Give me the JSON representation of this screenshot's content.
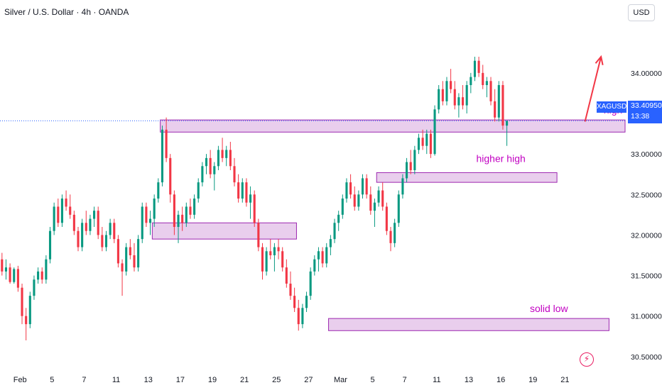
{
  "header": {
    "title": "Silver / U.S. Dollar · 4h · OANDA",
    "currency": "USD"
  },
  "colors": {
    "up": "#089981",
    "down": "#f23645",
    "zone_fill": "#e1bee7",
    "zone_stroke": "#9c27b0",
    "annotation": "#c200c2",
    "price_label": "#2962ff",
    "arrow": "#f23645",
    "axis_text": "#131722"
  },
  "icons": {
    "bolt": "lightning-icon"
  },
  "price_tag": {
    "symbol": "XAGUSD",
    "price": "33.40950",
    "countdown": "13:38",
    "value": 33.4095
  },
  "chart_data": {
    "type": "candlestick",
    "title": "Silver / U.S. Dollar · 4h · OANDA",
    "xlabel": "",
    "ylabel": "",
    "ylim": [
      30.35,
      34.55
    ],
    "y_ticks": [
      {
        "value": 34.0,
        "label": "34.00000"
      },
      {
        "value": 33.5,
        "label": "33.50000"
      },
      {
        "value": 33.0,
        "label": "33.00000"
      },
      {
        "value": 32.5,
        "label": "32.50000"
      },
      {
        "value": 32.0,
        "label": "32.00000"
      },
      {
        "value": 31.5,
        "label": "31.50000"
      },
      {
        "value": 31.0,
        "label": "31.00000"
      },
      {
        "value": 30.5,
        "label": "30.50000"
      }
    ],
    "x_range": [
      0,
      156
    ],
    "x_ticks": [
      {
        "index": 5,
        "label": "Feb"
      },
      {
        "index": 13,
        "label": "5"
      },
      {
        "index": 21,
        "label": "7"
      },
      {
        "index": 29,
        "label": "11"
      },
      {
        "index": 37,
        "label": "13"
      },
      {
        "index": 45,
        "label": "17"
      },
      {
        "index": 53,
        "label": "19"
      },
      {
        "index": 61,
        "label": "21"
      },
      {
        "index": 69,
        "label": "25"
      },
      {
        "index": 77,
        "label": "27"
      },
      {
        "index": 85,
        "label": "Mar"
      },
      {
        "index": 93,
        "label": "5"
      },
      {
        "index": 101,
        "label": "7"
      },
      {
        "index": 109,
        "label": "11"
      },
      {
        "index": 117,
        "label": "13"
      },
      {
        "index": 125,
        "label": "16"
      },
      {
        "index": 133,
        "label": "19"
      },
      {
        "index": 141,
        "label": "21"
      }
    ],
    "series_ohlc": [
      [
        31.7,
        31.78,
        31.5,
        31.55
      ],
      [
        31.55,
        31.7,
        31.45,
        31.6
      ],
      [
        31.6,
        31.65,
        31.4,
        31.42
      ],
      [
        31.42,
        31.6,
        31.4,
        31.58
      ],
      [
        31.58,
        31.62,
        31.3,
        31.35
      ],
      [
        31.35,
        31.4,
        30.9,
        31.0
      ],
      [
        31.0,
        31.1,
        30.7,
        30.9
      ],
      [
        30.9,
        31.3,
        30.85,
        31.25
      ],
      [
        31.25,
        31.5,
        31.2,
        31.45
      ],
      [
        31.45,
        31.6,
        31.4,
        31.55
      ],
      [
        31.55,
        31.6,
        31.4,
        31.45
      ],
      [
        31.45,
        31.75,
        31.4,
        31.7
      ],
      [
        31.7,
        32.1,
        31.65,
        32.05
      ],
      [
        32.05,
        32.4,
        32.0,
        32.35
      ],
      [
        32.35,
        32.45,
        32.1,
        32.15
      ],
      [
        32.15,
        32.5,
        32.1,
        32.45
      ],
      [
        32.45,
        32.55,
        32.3,
        32.35
      ],
      [
        32.35,
        32.5,
        32.2,
        32.25
      ],
      [
        32.25,
        32.3,
        32.0,
        32.05
      ],
      [
        32.05,
        32.1,
        31.8,
        31.85
      ],
      [
        31.85,
        32.2,
        31.8,
        32.15
      ],
      [
        32.15,
        32.3,
        32.0,
        32.05
      ],
      [
        32.05,
        32.25,
        32.0,
        32.2
      ],
      [
        32.2,
        32.35,
        32.1,
        32.3
      ],
      [
        32.3,
        32.35,
        31.95,
        32.0
      ],
      [
        32.0,
        32.1,
        31.8,
        31.85
      ],
      [
        31.85,
        32.05,
        31.8,
        32.0
      ],
      [
        32.0,
        32.2,
        31.95,
        32.15
      ],
      [
        32.15,
        32.2,
        31.9,
        31.95
      ],
      [
        31.95,
        32.0,
        31.6,
        31.65
      ],
      [
        31.65,
        31.7,
        31.25,
        31.55
      ],
      [
        31.55,
        31.9,
        31.5,
        31.85
      ],
      [
        31.85,
        31.95,
        31.7,
        31.75
      ],
      [
        31.75,
        31.9,
        31.55,
        31.6
      ],
      [
        31.6,
        32.0,
        31.55,
        31.95
      ],
      [
        31.95,
        32.4,
        31.9,
        32.35
      ],
      [
        32.35,
        32.4,
        32.1,
        32.15
      ],
      [
        32.15,
        32.3,
        32.0,
        32.2
      ],
      [
        32.2,
        32.5,
        32.1,
        32.45
      ],
      [
        32.45,
        32.7,
        32.4,
        32.65
      ],
      [
        32.65,
        33.35,
        32.6,
        33.3
      ],
      [
        33.3,
        33.45,
        32.9,
        32.95
      ],
      [
        32.95,
        33.0,
        32.4,
        32.5
      ],
      [
        32.5,
        32.55,
        32.0,
        32.1
      ],
      [
        32.1,
        32.3,
        31.9,
        32.25
      ],
      [
        32.25,
        32.35,
        32.05,
        32.15
      ],
      [
        32.15,
        32.4,
        32.1,
        32.35
      ],
      [
        32.35,
        32.45,
        32.2,
        32.25
      ],
      [
        32.25,
        32.5,
        32.2,
        32.45
      ],
      [
        32.45,
        32.7,
        32.4,
        32.65
      ],
      [
        32.65,
        32.9,
        32.6,
        32.85
      ],
      [
        32.85,
        33.0,
        32.75,
        32.95
      ],
      [
        32.95,
        33.05,
        32.7,
        32.75
      ],
      [
        32.75,
        32.9,
        32.55,
        32.85
      ],
      [
        32.85,
        33.1,
        32.8,
        33.05
      ],
      [
        33.05,
        33.2,
        32.9,
        32.95
      ],
      [
        32.95,
        33.1,
        32.85,
        33.05
      ],
      [
        33.05,
        33.15,
        32.8,
        32.85
      ],
      [
        32.85,
        32.95,
        32.6,
        32.65
      ],
      [
        32.65,
        32.75,
        32.4,
        32.45
      ],
      [
        32.45,
        32.7,
        32.4,
        32.65
      ],
      [
        32.65,
        32.7,
        32.35,
        32.4
      ],
      [
        32.4,
        32.6,
        32.2,
        32.5
      ],
      [
        32.5,
        32.55,
        32.1,
        32.15
      ],
      [
        32.15,
        32.2,
        31.8,
        31.85
      ],
      [
        31.85,
        31.9,
        31.45,
        31.55
      ],
      [
        31.55,
        31.85,
        31.5,
        31.8
      ],
      [
        31.8,
        31.95,
        31.7,
        31.75
      ],
      [
        31.75,
        31.9,
        31.55,
        31.85
      ],
      [
        31.85,
        31.95,
        31.7,
        31.8
      ],
      [
        31.8,
        31.85,
        31.55,
        31.6
      ],
      [
        31.6,
        31.7,
        31.35,
        31.4
      ],
      [
        31.4,
        31.55,
        31.2,
        31.25
      ],
      [
        31.25,
        31.35,
        31.05,
        31.1
      ],
      [
        31.1,
        31.2,
        30.82,
        30.9
      ],
      [
        30.9,
        31.15,
        30.85,
        31.1
      ],
      [
        31.1,
        31.3,
        31.05,
        31.25
      ],
      [
        31.25,
        31.6,
        31.2,
        31.55
      ],
      [
        31.55,
        31.75,
        31.5,
        31.7
      ],
      [
        31.7,
        31.85,
        31.55,
        31.8
      ],
      [
        31.8,
        31.85,
        31.6,
        31.65
      ],
      [
        31.65,
        31.9,
        31.6,
        31.85
      ],
      [
        31.85,
        32.0,
        31.75,
        31.95
      ],
      [
        31.95,
        32.2,
        31.9,
        32.15
      ],
      [
        32.15,
        32.3,
        32.05,
        32.25
      ],
      [
        32.25,
        32.5,
        32.2,
        32.45
      ],
      [
        32.45,
        32.7,
        32.4,
        32.65
      ],
      [
        32.65,
        32.75,
        32.45,
        32.5
      ],
      [
        32.5,
        32.6,
        32.3,
        32.35
      ],
      [
        32.35,
        32.55,
        32.3,
        32.5
      ],
      [
        32.5,
        32.75,
        32.45,
        32.7
      ],
      [
        32.7,
        32.75,
        32.45,
        32.5
      ],
      [
        32.5,
        32.6,
        32.25,
        32.3
      ],
      [
        32.3,
        32.45,
        32.1,
        32.4
      ],
      [
        32.4,
        32.6,
        32.35,
        32.55
      ],
      [
        32.55,
        32.65,
        32.3,
        32.35
      ],
      [
        32.35,
        32.4,
        32.0,
        32.05
      ],
      [
        32.05,
        32.1,
        31.8,
        31.9
      ],
      [
        31.9,
        32.2,
        31.85,
        32.15
      ],
      [
        32.15,
        32.55,
        32.1,
        32.5
      ],
      [
        32.5,
        32.75,
        32.45,
        32.7
      ],
      [
        32.7,
        32.95,
        32.65,
        32.9
      ],
      [
        32.9,
        33.05,
        32.75,
        32.8
      ],
      [
        32.8,
        33.1,
        32.75,
        33.05
      ],
      [
        33.05,
        33.25,
        33.0,
        33.2
      ],
      [
        33.2,
        33.3,
        33.05,
        33.1
      ],
      [
        33.1,
        33.3,
        33.0,
        33.25
      ],
      [
        33.25,
        33.3,
        32.95,
        33.0
      ],
      [
        33.0,
        33.6,
        32.98,
        33.55
      ],
      [
        33.55,
        33.85,
        33.5,
        33.8
      ],
      [
        33.8,
        33.9,
        33.6,
        33.65
      ],
      [
        33.65,
        33.95,
        33.6,
        33.9
      ],
      [
        33.9,
        34.05,
        33.75,
        33.8
      ],
      [
        33.8,
        33.9,
        33.55,
        33.6
      ],
      [
        33.6,
        33.75,
        33.45,
        33.7
      ],
      [
        33.7,
        33.85,
        33.55,
        33.6
      ],
      [
        33.6,
        33.9,
        33.5,
        33.85
      ],
      [
        33.85,
        34.0,
        33.75,
        33.95
      ],
      [
        33.95,
        34.2,
        33.9,
        34.15
      ],
      [
        34.15,
        34.2,
        33.95,
        34.0
      ],
      [
        34.0,
        34.1,
        33.8,
        33.85
      ],
      [
        33.85,
        33.95,
        33.7,
        33.9
      ],
      [
        33.9,
        33.95,
        33.6,
        33.65
      ],
      [
        33.65,
        33.8,
        33.4,
        33.45
      ],
      [
        33.45,
        33.9,
        33.4,
        33.85
      ],
      [
        33.85,
        33.9,
        33.3,
        33.35
      ],
      [
        33.35,
        33.4,
        33.1,
        33.41
      ]
    ],
    "zones": [
      {
        "x0": 40,
        "x1": 156,
        "y0": 33.27,
        "y1": 33.42
      },
      {
        "x0": 38,
        "x1": 74,
        "y0": 31.95,
        "y1": 32.15
      },
      {
        "x0": 94,
        "x1": 139,
        "y0": 32.65,
        "y1": 32.77
      },
      {
        "x0": 82,
        "x1": 152,
        "y0": 30.82,
        "y1": 30.97
      }
    ],
    "arrow": {
      "from": {
        "x": 146,
        "y": 33.4
      },
      "to": {
        "x": 150,
        "y": 34.2
      }
    },
    "annotations": [
      {
        "text": "high",
        "x": 153,
        "y": 33.5
      },
      {
        "text": "higher high",
        "x": 125,
        "y": 32.9
      },
      {
        "text": "solid low",
        "x": 137,
        "y": 31.05
      }
    ]
  }
}
